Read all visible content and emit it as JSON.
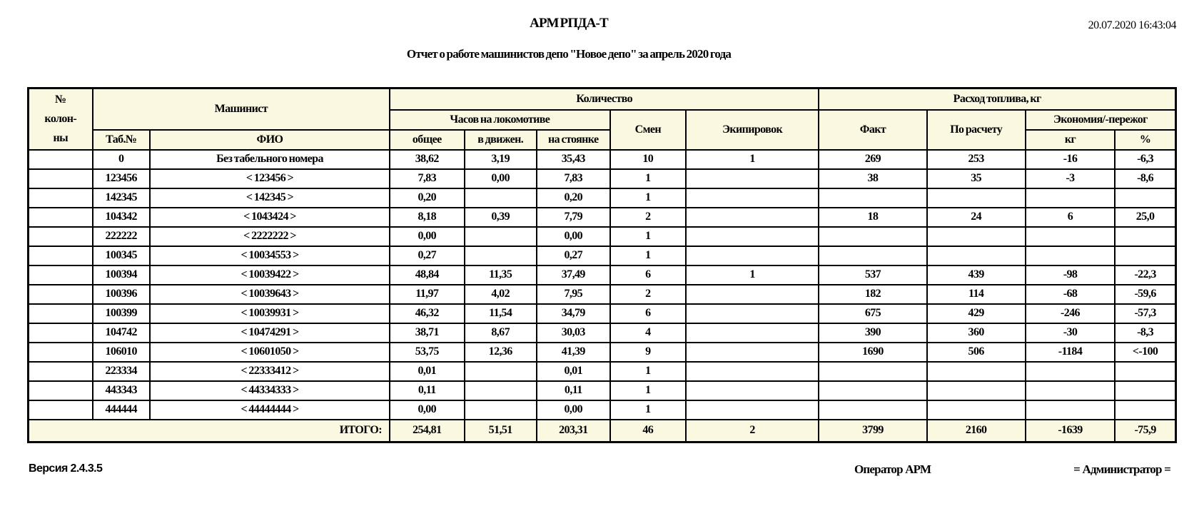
{
  "page": {
    "app_title": "АРМ РПДА-Т",
    "datetime": "20.07.2020 16:43:04",
    "report_title": "Отчет о работе машинистов депо \"Новое депо\" за апрель 2020 года"
  },
  "colors": {
    "header_bg": "#faf8e0",
    "border": "#000000",
    "page_bg": "#ffffff"
  },
  "table": {
    "headers": {
      "col_num": "№\nколон-\nны",
      "machinist": "Машинист",
      "tab_no": "Таб.№",
      "fio": "ФИО",
      "quantity": "Количество",
      "hours_on_loco": "Часов на локомотиве",
      "hours_total": "общее",
      "hours_moving": "в движен.",
      "hours_parked": "на стоянке",
      "shifts": "Смен",
      "equipments": "Экипировок",
      "fuel_consumption": "Расход топлива, кг",
      "fact": "Факт",
      "by_calc": "По расчету",
      "economy_overrun": "Экономия/-пережог",
      "kg": "кг",
      "pct": "%"
    },
    "col_keys": [
      "col_num",
      "tab_no",
      "fio",
      "hours_total",
      "hours_moving",
      "hours_parked",
      "shifts",
      "equipments",
      "fuel_fact",
      "fuel_calc",
      "economy_kg",
      "economy_pct"
    ],
    "rows": [
      [
        "",
        "0",
        "Без табельного номера",
        "38,62",
        "3,19",
        "35,43",
        "10",
        "1",
        "269",
        "253",
        "-16",
        "-6,3"
      ],
      [
        "",
        "123456",
        "< 123456 >",
        "7,83",
        "0,00",
        "7,83",
        "1",
        "",
        "38",
        "35",
        "-3",
        "-8,6"
      ],
      [
        "",
        "142345",
        "< 142345 >",
        "0,20",
        "",
        "0,20",
        "1",
        "",
        "",
        "",
        "",
        ""
      ],
      [
        "",
        "104342",
        "< 1043424 >",
        "8,18",
        "0,39",
        "7,79",
        "2",
        "",
        "18",
        "24",
        "6",
        "25,0"
      ],
      [
        "",
        "222222",
        "< 2222222 >",
        "0,00",
        "",
        "0,00",
        "1",
        "",
        "",
        "",
        "",
        ""
      ],
      [
        "",
        "100345",
        "< 10034553 >",
        "0,27",
        "",
        "0,27",
        "1",
        "",
        "",
        "",
        "",
        ""
      ],
      [
        "",
        "100394",
        "< 10039422 >",
        "48,84",
        "11,35",
        "37,49",
        "6",
        "1",
        "537",
        "439",
        "-98",
        "-22,3"
      ],
      [
        "",
        "100396",
        "< 10039643 >",
        "11,97",
        "4,02",
        "7,95",
        "2",
        "",
        "182",
        "114",
        "-68",
        "-59,6"
      ],
      [
        "",
        "100399",
        "< 10039931 >",
        "46,32",
        "11,54",
        "34,79",
        "6",
        "",
        "675",
        "429",
        "-246",
        "-57,3"
      ],
      [
        "",
        "104742",
        "< 10474291 >",
        "38,71",
        "8,67",
        "30,03",
        "4",
        "",
        "390",
        "360",
        "-30",
        "-8,3"
      ],
      [
        "",
        "106010",
        "< 10601050 >",
        "53,75",
        "12,36",
        "41,39",
        "9",
        "",
        "1690",
        "506",
        "-1184",
        "<-100"
      ],
      [
        "",
        "223334",
        "< 22333412 >",
        "0,01",
        "",
        "0,01",
        "1",
        "",
        "",
        "",
        "",
        ""
      ],
      [
        "",
        "443343",
        "< 44334333 >",
        "0,11",
        "",
        "0,11",
        "1",
        "",
        "",
        "",
        "",
        ""
      ],
      [
        "",
        "444444",
        "< 44444444 >",
        "0,00",
        "",
        "0,00",
        "1",
        "",
        "",
        "",
        "",
        ""
      ]
    ],
    "totals": {
      "label": "ИТОГО:",
      "values": [
        "254,81",
        "51,51",
        "203,31",
        "46",
        "2",
        "3799",
        "2160",
        "-1639",
        "-75,9"
      ]
    }
  },
  "footer": {
    "version": "Версия 2.4.3.5",
    "operator_label": "Оператор АРМ",
    "operator_value": "= Администратор ="
  }
}
